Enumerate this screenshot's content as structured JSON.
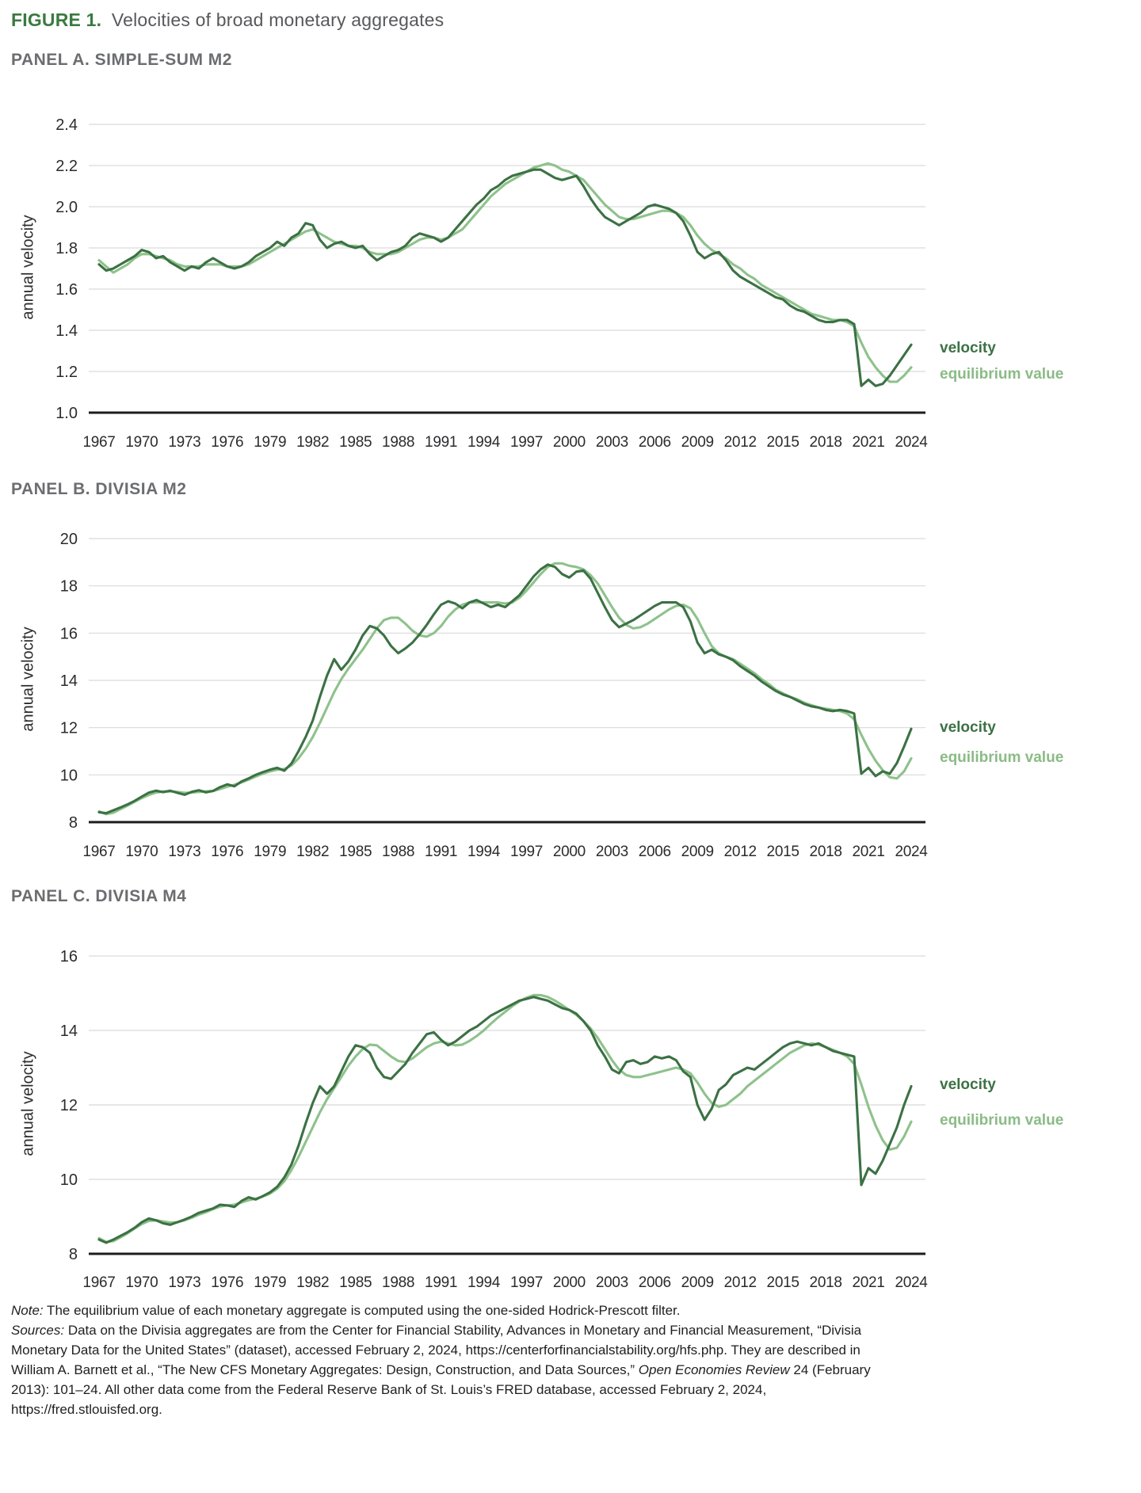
{
  "figure": {
    "label": "FIGURE 1.",
    "title": "Velocities of broad monetary aggregates"
  },
  "legend": {
    "velocity": "velocity",
    "equilibrium": "equilibrium value"
  },
  "ylabel": "annual velocity",
  "colors": {
    "velocity": "#3c7144",
    "equilibrium": "#8ec28b",
    "legend_equilibrium_text": "#8bbb86",
    "grid": "#dadada",
    "axis": "#1c1c1c",
    "tick_label": "#2b2c2e",
    "figure_label_green": "#3a7a40",
    "figure_title_gray": "#57585b",
    "panel_heading_gray": "#6c6d70",
    "note_text": "#1f1f1f",
    "background": "#ffffff"
  },
  "note": {
    "note_label": "Note:",
    "note_text": " The equilibrium value of each monetary aggregate is computed using the one-sided Hodrick-Prescott filter.",
    "sources_label": "Sources:",
    "sources_text_1": " Data on the Divisia aggregates are from the Center for Financial Stability, Advances in Monetary and Financial Measurement, “Divisia Monetary Data for the United States” (dataset), accessed February 2, 2024, https://centerforfinancialstability.org/hfs.php. They are described in William A. Barnett et al., “The New CFS Monetary Aggregates: Design, Construction, and Data Sources,” ",
    "journal": "Open Economies Review",
    "sources_text_2": " 24 (February 2013): 101–24. All other data come from the Federal Reserve Bank of St. Louis’s FRED database, accessed February 2, 2024, https://fred.stlouisfed.org."
  },
  "chart_data": [
    {
      "type": "line",
      "heading": "PANEL A. SIMPLE-SUM M2",
      "ylabel": "annual velocity",
      "ylim": [
        1.0,
        2.4
      ],
      "yticks": [
        "2.4",
        "2.2",
        "2.0",
        "1.8",
        "1.6",
        "1.4",
        "1.2",
        "1.0"
      ],
      "grid": true,
      "legend_position": "right",
      "x_start": 1967,
      "x_step": 0.5,
      "x_ticks": [
        1967,
        1970,
        1973,
        1976,
        1979,
        1982,
        1985,
        1988,
        1991,
        1994,
        1997,
        2000,
        2003,
        2006,
        2009,
        2012,
        2015,
        2018,
        2021,
        2024
      ],
      "series": [
        {
          "name": "equilibrium value",
          "values": [
            1.74,
            1.71,
            1.68,
            1.7,
            1.72,
            1.75,
            1.77,
            1.77,
            1.76,
            1.75,
            1.74,
            1.72,
            1.71,
            1.71,
            1.71,
            1.72,
            1.72,
            1.72,
            1.71,
            1.71,
            1.71,
            1.72,
            1.74,
            1.76,
            1.78,
            1.8,
            1.82,
            1.84,
            1.86,
            1.88,
            1.89,
            1.87,
            1.85,
            1.83,
            1.82,
            1.81,
            1.81,
            1.8,
            1.78,
            1.77,
            1.77,
            1.77,
            1.78,
            1.8,
            1.82,
            1.84,
            1.85,
            1.85,
            1.84,
            1.85,
            1.87,
            1.89,
            1.93,
            1.97,
            2.01,
            2.05,
            2.08,
            2.11,
            2.13,
            2.15,
            2.17,
            2.19,
            2.2,
            2.21,
            2.2,
            2.18,
            2.17,
            2.15,
            2.13,
            2.09,
            2.05,
            2.01,
            1.98,
            1.95,
            1.94,
            1.94,
            1.95,
            1.96,
            1.97,
            1.98,
            1.98,
            1.97,
            1.95,
            1.91,
            1.86,
            1.82,
            1.79,
            1.77,
            1.75,
            1.72,
            1.7,
            1.67,
            1.65,
            1.62,
            1.6,
            1.58,
            1.56,
            1.54,
            1.52,
            1.5,
            1.48,
            1.47,
            1.46,
            1.45,
            1.45,
            1.44,
            1.42,
            1.34,
            1.27,
            1.22,
            1.18,
            1.15,
            1.15,
            1.18,
            1.22
          ]
        },
        {
          "name": "velocity",
          "values": [
            1.72,
            1.69,
            1.7,
            1.72,
            1.74,
            1.76,
            1.79,
            1.78,
            1.75,
            1.76,
            1.73,
            1.71,
            1.69,
            1.71,
            1.7,
            1.73,
            1.75,
            1.73,
            1.71,
            1.7,
            1.71,
            1.73,
            1.76,
            1.78,
            1.8,
            1.83,
            1.81,
            1.85,
            1.87,
            1.92,
            1.91,
            1.84,
            1.8,
            1.82,
            1.83,
            1.81,
            1.8,
            1.81,
            1.77,
            1.74,
            1.76,
            1.78,
            1.79,
            1.81,
            1.85,
            1.87,
            1.86,
            1.85,
            1.83,
            1.85,
            1.89,
            1.93,
            1.97,
            2.01,
            2.04,
            2.08,
            2.1,
            2.13,
            2.15,
            2.16,
            2.17,
            2.18,
            2.18,
            2.16,
            2.14,
            2.13,
            2.14,
            2.15,
            2.1,
            2.04,
            1.99,
            1.95,
            1.93,
            1.91,
            1.93,
            1.95,
            1.97,
            2.0,
            2.01,
            2.0,
            1.99,
            1.97,
            1.93,
            1.86,
            1.78,
            1.75,
            1.77,
            1.78,
            1.74,
            1.69,
            1.66,
            1.64,
            1.62,
            1.6,
            1.58,
            1.56,
            1.55,
            1.52,
            1.5,
            1.49,
            1.47,
            1.45,
            1.44,
            1.44,
            1.45,
            1.45,
            1.43,
            1.13,
            1.16,
            1.13,
            1.14,
            1.18,
            1.23,
            1.28,
            1.33
          ]
        }
      ]
    },
    {
      "type": "line",
      "heading": "PANEL B. DIVISIA M2",
      "ylabel": "annual velocity",
      "ylim": [
        8,
        20
      ],
      "yticks": [
        "20",
        "18",
        "16",
        "14",
        "12",
        "10",
        "8"
      ],
      "grid": true,
      "legend_position": "right",
      "x_start": 1967,
      "x_step": 0.5,
      "x_ticks": [
        1967,
        1970,
        1973,
        1976,
        1979,
        1982,
        1985,
        1988,
        1991,
        1994,
        1997,
        2000,
        2003,
        2006,
        2009,
        2012,
        2015,
        2018,
        2021,
        2024
      ],
      "series": [
        {
          "name": "equilibrium value",
          "values": [
            8.46,
            8.34,
            8.4,
            8.55,
            8.7,
            8.86,
            9.02,
            9.15,
            9.25,
            9.3,
            9.3,
            9.28,
            9.24,
            9.25,
            9.28,
            9.3,
            9.32,
            9.4,
            9.5,
            9.58,
            9.68,
            9.8,
            9.93,
            10.05,
            10.15,
            10.22,
            10.25,
            10.4,
            10.7,
            11.1,
            11.6,
            12.2,
            12.85,
            13.5,
            14.05,
            14.5,
            14.9,
            15.3,
            15.75,
            16.2,
            16.55,
            16.65,
            16.65,
            16.4,
            16.1,
            15.9,
            15.85,
            16.0,
            16.3,
            16.7,
            17.0,
            17.2,
            17.3,
            17.3,
            17.3,
            17.3,
            17.3,
            17.25,
            17.3,
            17.5,
            17.8,
            18.15,
            18.5,
            18.8,
            18.95,
            18.95,
            18.85,
            18.8,
            18.7,
            18.45,
            18.1,
            17.6,
            17.1,
            16.65,
            16.35,
            16.2,
            16.25,
            16.4,
            16.6,
            16.8,
            17.0,
            17.15,
            17.2,
            17.05,
            16.6,
            16.0,
            15.45,
            15.15,
            15.0,
            14.9,
            14.7,
            14.5,
            14.3,
            14.05,
            13.85,
            13.6,
            13.45,
            13.3,
            13.2,
            13.05,
            12.95,
            12.85,
            12.8,
            12.75,
            12.7,
            12.6,
            12.35,
            11.7,
            11.1,
            10.6,
            10.2,
            9.9,
            9.85,
            10.15,
            10.7
          ]
        },
        {
          "name": "velocity",
          "values": [
            8.42,
            8.38,
            8.5,
            8.62,
            8.75,
            8.9,
            9.08,
            9.25,
            9.33,
            9.27,
            9.33,
            9.24,
            9.16,
            9.28,
            9.35,
            9.26,
            9.32,
            9.48,
            9.6,
            9.52,
            9.72,
            9.85,
            10.0,
            10.12,
            10.22,
            10.3,
            10.18,
            10.48,
            11.0,
            11.6,
            12.3,
            13.3,
            14.2,
            14.9,
            14.45,
            14.8,
            15.3,
            15.9,
            16.3,
            16.2,
            15.9,
            15.45,
            15.15,
            15.35,
            15.6,
            15.95,
            16.35,
            16.8,
            17.2,
            17.35,
            17.25,
            17.05,
            17.3,
            17.4,
            17.25,
            17.1,
            17.2,
            17.1,
            17.35,
            17.6,
            18.0,
            18.4,
            18.7,
            18.9,
            18.8,
            18.5,
            18.35,
            18.6,
            18.65,
            18.3,
            17.7,
            17.1,
            16.55,
            16.25,
            16.4,
            16.55,
            16.75,
            16.95,
            17.15,
            17.3,
            17.3,
            17.3,
            17.1,
            16.5,
            15.6,
            15.15,
            15.3,
            15.1,
            15.0,
            14.85,
            14.6,
            14.4,
            14.2,
            13.95,
            13.75,
            13.55,
            13.4,
            13.3,
            13.15,
            13.0,
            12.9,
            12.85,
            12.75,
            12.7,
            12.75,
            12.7,
            12.6,
            10.05,
            10.3,
            9.95,
            10.15,
            10.05,
            10.5,
            11.2,
            11.95
          ]
        }
      ]
    },
    {
      "type": "line",
      "heading": "PANEL C. DIVISIA M4",
      "ylabel": "annual velocity",
      "ylim": [
        8,
        16
      ],
      "yticks": [
        "16",
        "14",
        "12",
        "10",
        "8"
      ],
      "grid": true,
      "legend_position": "right",
      "x_start": 1967,
      "x_step": 0.5,
      "x_ticks": [
        1967,
        1970,
        1973,
        1976,
        1979,
        1982,
        1985,
        1988,
        1991,
        1994,
        1997,
        2000,
        2003,
        2006,
        2009,
        2012,
        2015,
        2018,
        2021,
        2024
      ],
      "series": [
        {
          "name": "equilibrium value",
          "values": [
            8.42,
            8.32,
            8.34,
            8.44,
            8.55,
            8.68,
            8.8,
            8.88,
            8.9,
            8.87,
            8.84,
            8.85,
            8.9,
            8.97,
            9.05,
            9.12,
            9.2,
            9.27,
            9.3,
            9.32,
            9.38,
            9.44,
            9.48,
            9.54,
            9.62,
            9.75,
            9.95,
            10.25,
            10.6,
            11.0,
            11.4,
            11.8,
            12.15,
            12.45,
            12.75,
            13.05,
            13.3,
            13.5,
            13.62,
            13.6,
            13.45,
            13.3,
            13.18,
            13.15,
            13.25,
            13.4,
            13.55,
            13.65,
            13.7,
            13.65,
            13.6,
            13.62,
            13.72,
            13.85,
            14.0,
            14.18,
            14.35,
            14.5,
            14.65,
            14.78,
            14.88,
            14.95,
            14.95,
            14.9,
            14.8,
            14.68,
            14.55,
            14.42,
            14.25,
            14.05,
            13.8,
            13.5,
            13.2,
            12.95,
            12.8,
            12.75,
            12.75,
            12.8,
            12.85,
            12.9,
            12.95,
            13.0,
            12.95,
            12.85,
            12.6,
            12.3,
            12.05,
            11.95,
            12.0,
            12.15,
            12.3,
            12.5,
            12.65,
            12.8,
            12.95,
            13.1,
            13.25,
            13.4,
            13.5,
            13.6,
            13.65,
            13.62,
            13.55,
            13.48,
            13.4,
            13.3,
            13.1,
            12.55,
            11.95,
            11.45,
            11.05,
            10.8,
            10.85,
            11.15,
            11.55
          ]
        },
        {
          "name": "velocity",
          "values": [
            8.38,
            8.3,
            8.38,
            8.48,
            8.58,
            8.7,
            8.85,
            8.95,
            8.9,
            8.82,
            8.78,
            8.85,
            8.92,
            9.0,
            9.1,
            9.16,
            9.22,
            9.32,
            9.3,
            9.26,
            9.42,
            9.52,
            9.46,
            9.55,
            9.65,
            9.8,
            10.05,
            10.4,
            10.9,
            11.5,
            12.05,
            12.5,
            12.3,
            12.5,
            12.9,
            13.3,
            13.6,
            13.55,
            13.4,
            13.0,
            12.75,
            12.7,
            12.9,
            13.1,
            13.4,
            13.65,
            13.9,
            13.95,
            13.75,
            13.6,
            13.7,
            13.85,
            14.0,
            14.1,
            14.25,
            14.4,
            14.5,
            14.6,
            14.7,
            14.8,
            14.85,
            14.9,
            14.85,
            14.8,
            14.7,
            14.6,
            14.55,
            14.45,
            14.25,
            14.0,
            13.6,
            13.3,
            12.95,
            12.85,
            13.15,
            13.2,
            13.1,
            13.15,
            13.3,
            13.25,
            13.3,
            13.2,
            12.9,
            12.75,
            12.0,
            11.6,
            11.9,
            12.4,
            12.55,
            12.8,
            12.9,
            13.0,
            12.95,
            13.1,
            13.25,
            13.4,
            13.55,
            13.65,
            13.7,
            13.65,
            13.6,
            13.65,
            13.55,
            13.45,
            13.4,
            13.35,
            13.3,
            9.85,
            10.3,
            10.15,
            10.5,
            10.95,
            11.4,
            12.0,
            12.5
          ]
        }
      ]
    }
  ]
}
